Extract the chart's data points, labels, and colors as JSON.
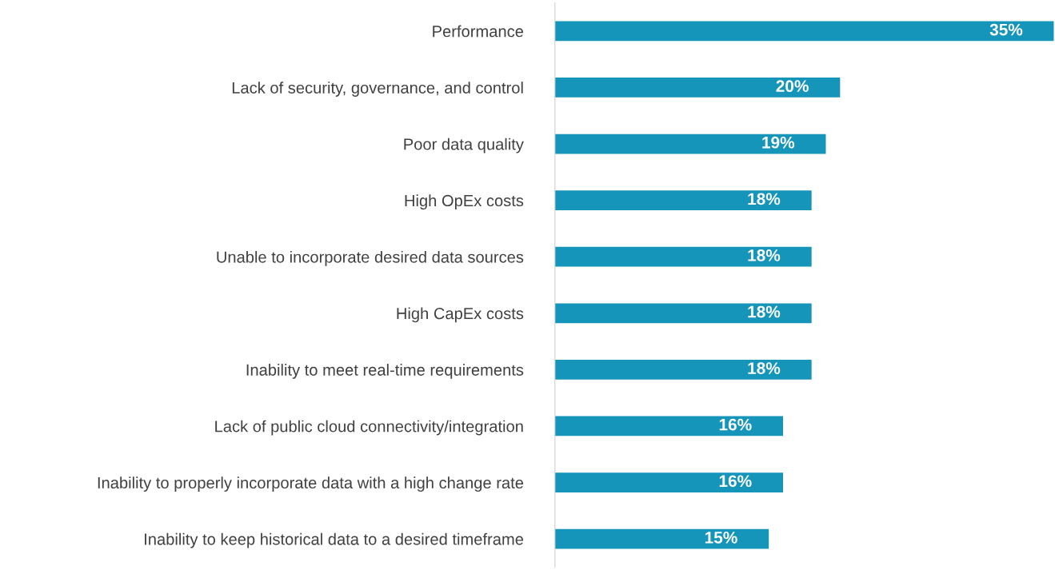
{
  "chart_data": {
    "type": "bar",
    "orientation": "horizontal",
    "categories": [
      "Performance",
      "Lack of security, governance, and control",
      "Poor data quality",
      "High OpEx costs",
      "Unable to incorporate desired data sources",
      "High CapEx costs",
      "Inability to meet real-time requirements",
      "Lack of public cloud connectivity/integration",
      "Inability to properly incorporate data with a high change rate",
      "Inability to keep historical data to a desired timeframe"
    ],
    "values": [
      35,
      20,
      19,
      18,
      18,
      18,
      18,
      16,
      16,
      15
    ],
    "value_labels": [
      "35%",
      "20%",
      "19%",
      "18%",
      "18%",
      "18%",
      "18%",
      "16%",
      "16%",
      "15%"
    ],
    "color": "#1595ba",
    "grid": false,
    "legend": false
  }
}
